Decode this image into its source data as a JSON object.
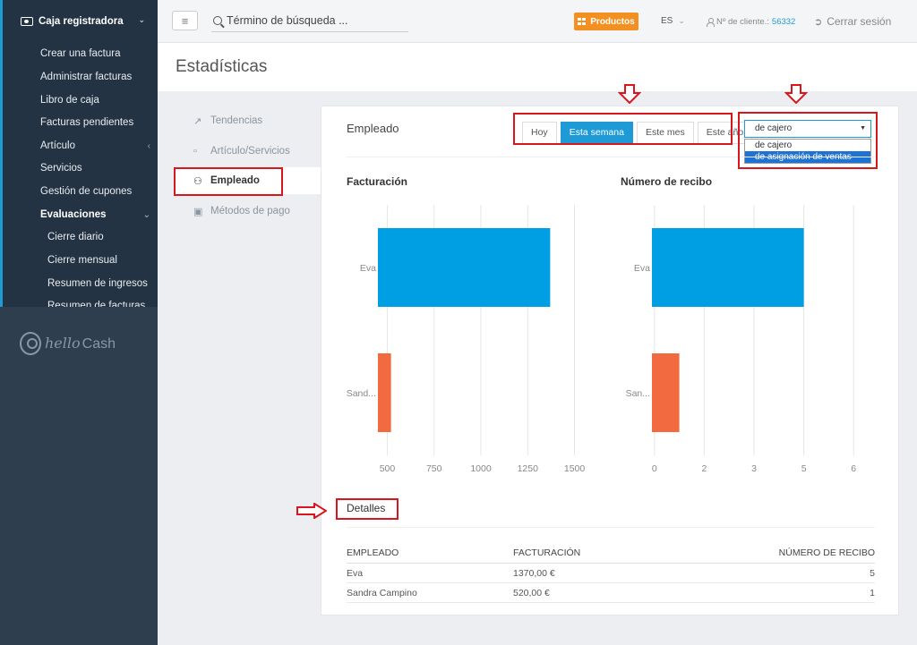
{
  "sidebar": {
    "header": "Caja registradora",
    "items": [
      {
        "label": "Crear una factura"
      },
      {
        "label": "Administrar facturas"
      },
      {
        "label": "Libro de caja"
      },
      {
        "label": "Facturas pendientes"
      },
      {
        "label": "Artículo"
      },
      {
        "label": "Servicios"
      },
      {
        "label": "Gestión de cupones"
      },
      {
        "label": "Evaluaciones"
      },
      {
        "label": "Cierre diario"
      },
      {
        "label": "Cierre mensual"
      },
      {
        "label": "Resumen de ingresos"
      },
      {
        "label": "Resumen de facturas"
      }
    ],
    "logo_script": "hello",
    "logo_text": "Cash"
  },
  "topbar": {
    "search_placeholder": "Término de búsqueda ...",
    "products_label": "Productos",
    "lang": "ES",
    "client_label": "Nº de cliente.:",
    "client_number": "56332",
    "logout_label": "Cerrar sesión"
  },
  "page": {
    "title": "Estadísticas"
  },
  "subnav": [
    {
      "label": "Tendencias"
    },
    {
      "label": "Artículo/Servicios"
    },
    {
      "label": "Empleado"
    },
    {
      "label": "Métodos de pago"
    }
  ],
  "panel": {
    "title": "Empleado",
    "period_buttons": [
      {
        "label": "Hoy"
      },
      {
        "label": "Esta semana"
      },
      {
        "label": "Este mes"
      },
      {
        "label": "Este año"
      }
    ],
    "select_value": "de cajero",
    "select_options": [
      "de cajero",
      "de asignación de ventas"
    ],
    "details_title": "Detalles",
    "table": {
      "headers": [
        "EMPLEADO",
        "FACTURACIÓN",
        "NÚMERO DE RECIBO"
      ],
      "rows": [
        [
          "Eva",
          "1370,00 €",
          "5"
        ],
        [
          "Sandra Campino",
          "520,00 €",
          "1"
        ]
      ]
    }
  },
  "chart_data": [
    {
      "type": "bar",
      "orientation": "horizontal",
      "title": "Facturación",
      "categories": [
        "Eva",
        "Sand..."
      ],
      "values": [
        1370,
        520
      ],
      "colors": [
        "#009ee3",
        "#f26a3f"
      ],
      "xlim": [
        450,
        1550
      ],
      "xticks": [
        500,
        750,
        1000,
        1250,
        1500
      ]
    },
    {
      "type": "bar",
      "orientation": "horizontal",
      "title": "Número de recibo",
      "categories": [
        "Eva",
        "San..."
      ],
      "values": [
        5,
        1
      ],
      "colors": [
        "#009ee3",
        "#f26a3f"
      ],
      "xlim": [
        0,
        6
      ],
      "xticks": [
        "0",
        "2",
        "3",
        "5",
        "6"
      ],
      "xtick_positions": [
        0,
        1,
        2,
        3,
        4
      ]
    }
  ],
  "colors": {
    "accent": "#1e9bd7",
    "orange": "#f39022",
    "annotation": "#d9161c"
  }
}
